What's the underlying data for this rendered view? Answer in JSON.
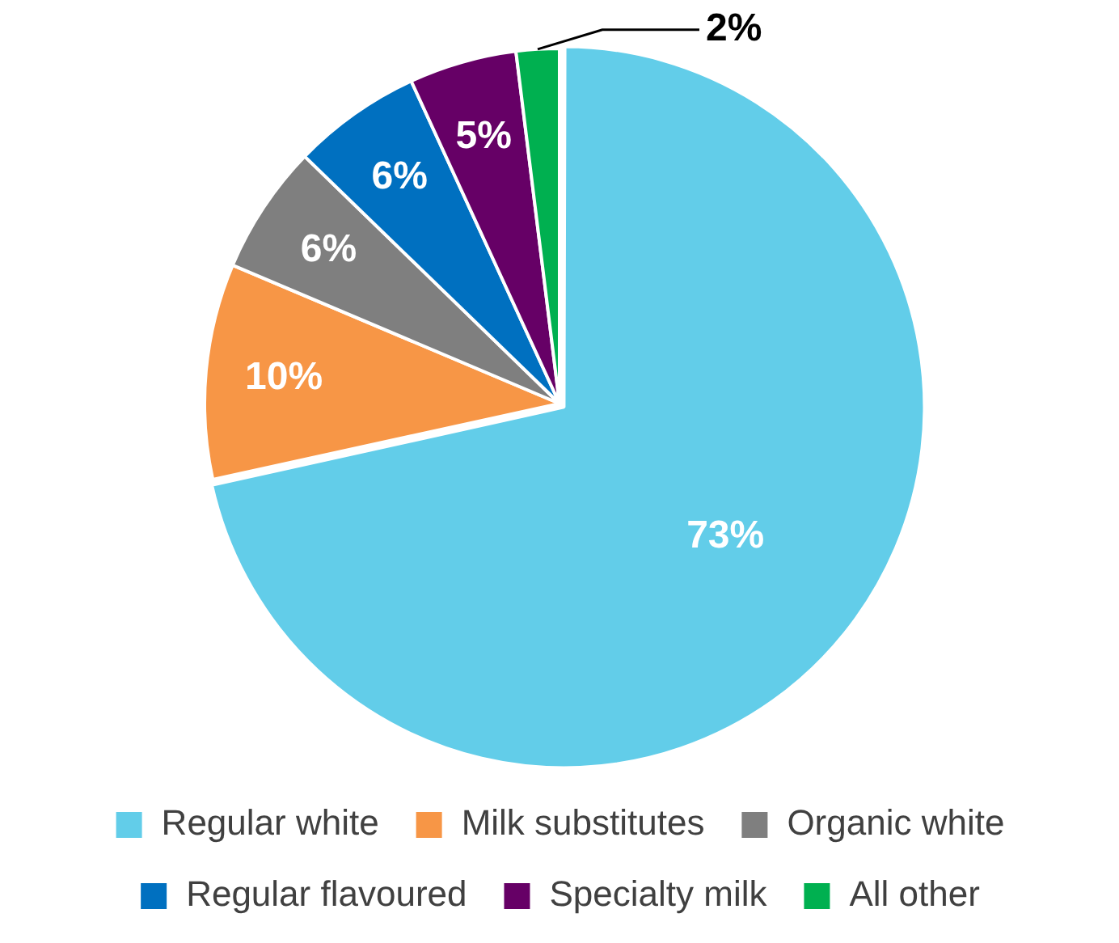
{
  "chart_data": {
    "type": "pie",
    "categories": [
      "Regular white",
      "Milk substitutes",
      "Organic white",
      "Regular flavoured",
      "Specialty milk",
      "All other"
    ],
    "values": [
      73,
      10,
      6,
      6,
      5,
      2
    ],
    "value_labels": [
      "73%",
      "10%",
      "6%",
      "6%",
      "5%",
      "2%"
    ],
    "colors": [
      "#62cde9",
      "#f79646",
      "#7f7f7f",
      "#0070c0",
      "#660066",
      "#00b050"
    ],
    "legend": "bottom"
  }
}
